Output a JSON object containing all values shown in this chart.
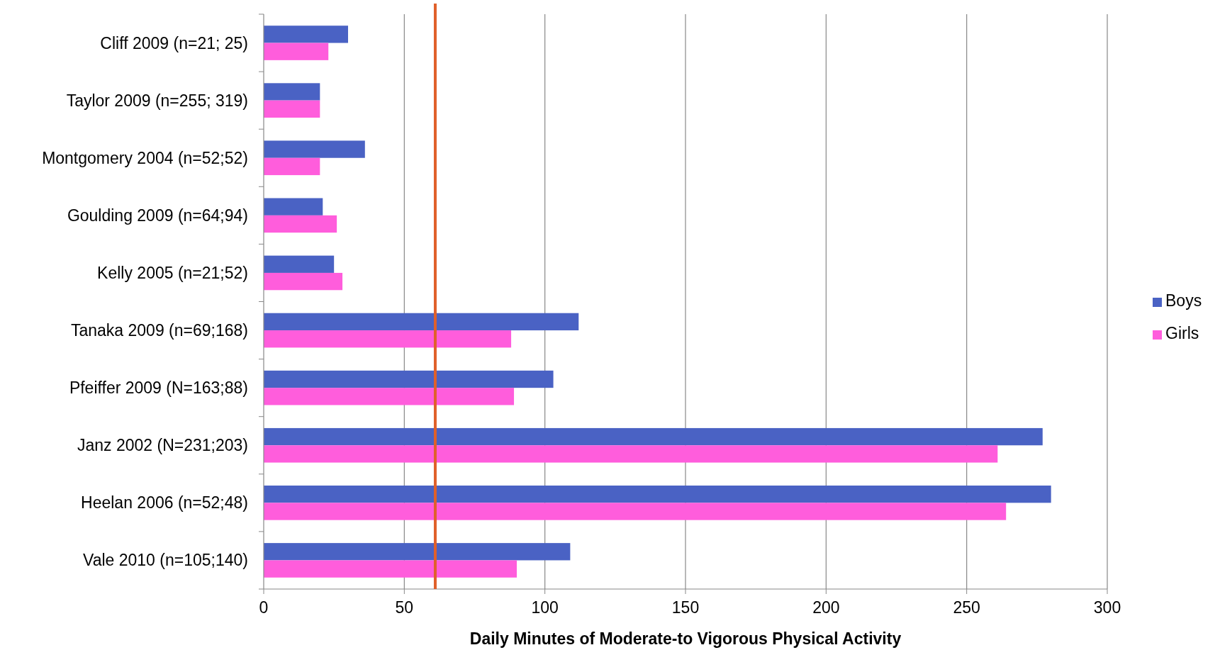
{
  "chart_data": {
    "type": "bar",
    "orientation": "horizontal",
    "xlabel": "Daily Minutes of Moderate-to Vigorous Physical Activity",
    "categories": [
      "Cliff 2009 (n=21; 25)",
      "Taylor 2009 (n=255; 319)",
      "Montgomery 2004 (n=52;52)",
      "Goulding 2009 (n=64;94)",
      "Kelly 2005 (n=21;52)",
      "Tanaka 2009 (n=69;168)",
      "Pfeiffer 2009 (N=163;88)",
      "Janz 2002 (N=231;203)",
      "Heelan 2006 (n=52;48)",
      "Vale 2010 (n=105;140)"
    ],
    "series": [
      {
        "name": "Boys",
        "color": "#4a62c4",
        "values": [
          30,
          20,
          36,
          21,
          25,
          112,
          103,
          277,
          280,
          109
        ]
      },
      {
        "name": "Girls",
        "color": "#ff5ddc",
        "values": [
          23,
          20,
          20,
          26,
          28,
          88,
          89,
          261,
          264,
          90
        ]
      }
    ],
    "xlim": [
      0,
      300
    ],
    "xticks": [
      0,
      50,
      100,
      150,
      200,
      250,
      300
    ],
    "grid": "x",
    "legend": "right",
    "ref_lines": [
      {
        "axis": "x",
        "value": 61,
        "color": "#e0602a"
      }
    ]
  }
}
